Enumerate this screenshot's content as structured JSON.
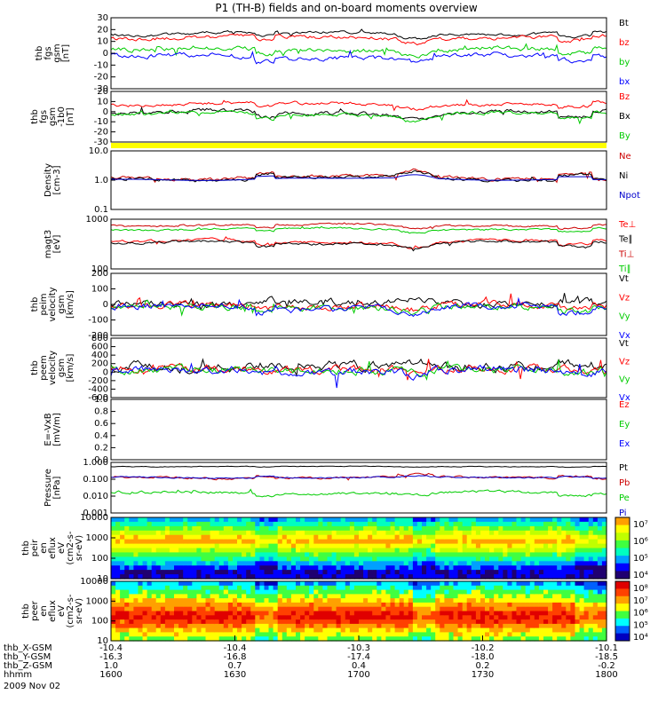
{
  "title": "P1 (TH-B) fields and on-board moments overview",
  "date": "2009 Nov 02",
  "chart_data": [
    {
      "type": "line",
      "ylabel": [
        "thb",
        "fgs",
        "gsm",
        "[nT]"
      ],
      "yticks": [
        "30",
        "20",
        "10",
        "0",
        "-10",
        "-20",
        "-30"
      ],
      "legend": [
        {
          "name": "Bt",
          "color": "#000000"
        },
        {
          "name": "bz",
          "color": "#ff0000"
        },
        {
          "name": "by",
          "color": "#00cc00"
        },
        {
          "name": "bx",
          "color": "#0000ff"
        }
      ]
    },
    {
      "type": "line",
      "ylabel": [
        "thb",
        "fgs",
        "gsm",
        "-1b0",
        "[nT]"
      ],
      "yticks": [
        "20",
        "10",
        "0",
        "-10",
        "-20",
        "-30"
      ],
      "legend": [
        {
          "name": "Bz",
          "color": "#ff0000"
        },
        {
          "name": "Bx",
          "color": "#000000"
        },
        {
          "name": "By",
          "color": "#00cc00"
        }
      ]
    },
    {
      "type": "line",
      "ylabel": [
        "Density",
        "[cm-3]"
      ],
      "yticks": [
        "10.0",
        "1.0",
        "0.1"
      ],
      "scale": "log",
      "legend": [
        {
          "name": "Ne",
          "color": "#cc0000"
        },
        {
          "name": "Ni",
          "color": "#000000"
        },
        {
          "name": "Npot",
          "color": "#0000cc"
        }
      ]
    },
    {
      "type": "line",
      "ylabel": [
        "magt3",
        "[eV]"
      ],
      "yticks": [
        "1000",
        "100"
      ],
      "scale": "log",
      "legend": [
        {
          "name": "Te⊥",
          "color": "#ff0000"
        },
        {
          "name": "Te∥",
          "color": "#000000"
        },
        {
          "name": "Ti⊥",
          "color": "#cc0000"
        },
        {
          "name": "Ti∥",
          "color": "#00cc00"
        }
      ]
    },
    {
      "type": "line",
      "ylabel": [
        "thb",
        "peim",
        "velocity",
        "gsm",
        "[km/s]"
      ],
      "yticks": [
        "200",
        "100",
        "0",
        "-100",
        "-200"
      ],
      "legend": [
        {
          "name": "Vt",
          "color": "#000000"
        },
        {
          "name": "Vz",
          "color": "#ff0000"
        },
        {
          "name": "Vy",
          "color": "#00cc00"
        },
        {
          "name": "Vx",
          "color": "#0000ff"
        }
      ]
    },
    {
      "type": "line",
      "ylabel": [
        "thb",
        "peem",
        "velocity",
        "gsm",
        "[km/s]"
      ],
      "yticks": [
        "800",
        "600",
        "400",
        "200",
        "0",
        "-200",
        "-400",
        "-600"
      ],
      "legend": [
        {
          "name": "Vt",
          "color": "#000000"
        },
        {
          "name": "Vz",
          "color": "#ff0000"
        },
        {
          "name": "Vy",
          "color": "#00cc00"
        },
        {
          "name": "Vx",
          "color": "#0000ff"
        }
      ]
    },
    {
      "type": "line",
      "ylabel": [
        "E=-VxB",
        "[mV/m]"
      ],
      "yticks": [
        "1.0",
        "0.8",
        "0.6",
        "0.4",
        "0.2",
        "0.0"
      ],
      "legend": [
        {
          "name": "Ez",
          "color": "#ff0000"
        },
        {
          "name": "Ey",
          "color": "#00cc00"
        },
        {
          "name": "Ex",
          "color": "#0000ff"
        }
      ]
    },
    {
      "type": "line",
      "ylabel": [
        "Pressure",
        "[nPa]"
      ],
      "yticks": [
        "1.000",
        "0.100",
        "0.010",
        "0.001"
      ],
      "scale": "log",
      "legend": [
        {
          "name": "Pt",
          "color": "#000000"
        },
        {
          "name": "Pb",
          "color": "#cc0000"
        },
        {
          "name": "Pe",
          "color": "#00cc00"
        },
        {
          "name": "Pi",
          "color": "#0000cc"
        }
      ]
    },
    {
      "type": "heatmap",
      "ylabel": [
        "thb",
        "peir",
        "en",
        "eflux",
        "eV",
        "(cm2-s-",
        "sr-eV)"
      ],
      "yticks": [
        "10000",
        "1000",
        "100",
        "10"
      ],
      "colorbar": [
        "10⁷",
        "10⁶",
        "10⁵",
        "10⁴"
      ]
    },
    {
      "type": "heatmap",
      "ylabel": [
        "thb",
        "peer",
        "en",
        "eflux",
        "eV",
        "(cm2-s-",
        "sr-eV)"
      ],
      "yticks": [
        "10000",
        "1000",
        "100",
        "10"
      ],
      "colorbar": [
        "10⁸",
        "10⁷",
        "10⁶",
        "10⁵",
        "10⁴"
      ]
    }
  ],
  "xaxis": {
    "rows": [
      {
        "label": "thb_X-GSM",
        "values": [
          "-10.4",
          "-10.4",
          "-10.3",
          "-10.2",
          "-10.1"
        ]
      },
      {
        "label": "thb_Y-GSM",
        "values": [
          "-16.3",
          "-16.8",
          "-17.4",
          "-18.0",
          "-18.5"
        ]
      },
      {
        "label": "thb_Z-GSM",
        "values": [
          "1.0",
          "0.7",
          "0.4",
          "0.2",
          "-0.2"
        ]
      },
      {
        "label": "hhmm",
        "values": [
          "1600",
          "1630",
          "1700",
          "1730",
          "1800"
        ]
      }
    ]
  }
}
